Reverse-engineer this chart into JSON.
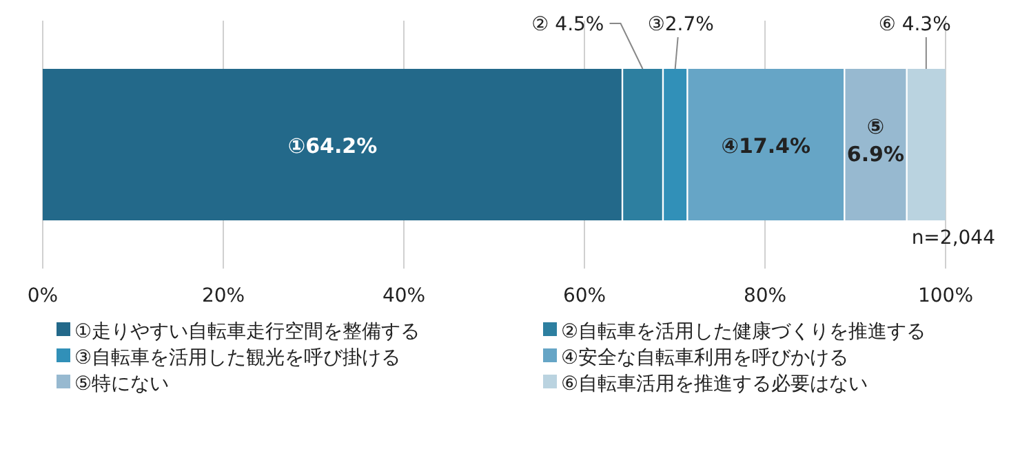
{
  "chart_data": {
    "type": "bar",
    "orientation": "horizontal",
    "stacked": true,
    "categories": [
      null
    ],
    "series": [
      {
        "name": "①走りやすい自転車走行空間を整備する",
        "color": "#23698a",
        "values": [
          64.2
        ],
        "value_labels": [
          "①64.2%"
        ]
      },
      {
        "name": "②自転車を活用した健康づくりを推進する",
        "color": "#2d7fa0",
        "values": [
          4.5
        ],
        "value_labels": [
          "② 4.5%"
        ]
      },
      {
        "name": "③自転車を活用した観光を呼び掛ける",
        "color": "#3190b8",
        "values": [
          2.7
        ],
        "value_labels": [
          "③2.7%"
        ]
      },
      {
        "name": "④安全な自転車利用を呼びかける",
        "color": "#66a5c6",
        "values": [
          17.4
        ],
        "value_labels": [
          "④17.4%"
        ]
      },
      {
        "name": "⑤特にない",
        "color": "#97b9d0",
        "values": [
          6.9
        ],
        "value_labels": [
          "⑤ 6.9%"
        ]
      },
      {
        "name": "⑥自転車活用を推進する必要はない",
        "color": "#bad3e0",
        "values": [
          4.3
        ],
        "value_labels": [
          "⑥ 4.3%"
        ]
      }
    ],
    "xlim": [
      0,
      100
    ],
    "xticks": [
      {
        "value": 0,
        "label": "0%"
      },
      {
        "value": 20,
        "label": "20%"
      },
      {
        "value": 40,
        "label": "40%"
      },
      {
        "value": 60,
        "label": "60%"
      },
      {
        "value": 80,
        "label": "80%"
      },
      {
        "value": 100,
        "label": "100%"
      }
    ],
    "grid": "x",
    "legend": "bottom",
    "annotations": [
      "n=2,044"
    ]
  }
}
